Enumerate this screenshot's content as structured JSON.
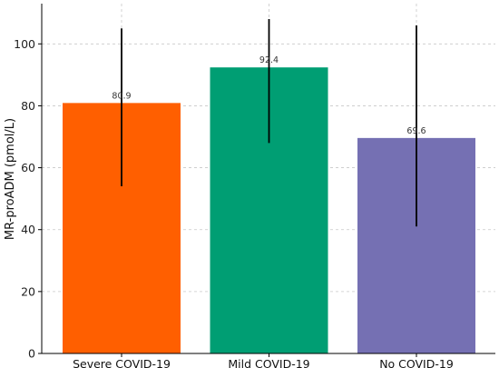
{
  "chart_data": {
    "type": "bar",
    "categories": [
      "Severe COVID-19",
      "Mild COVID-19",
      "No COVID-19"
    ],
    "values": [
      80.9,
      92.4,
      69.6
    ],
    "value_labels": [
      "80.9",
      "92.4",
      "69.6"
    ],
    "error_low": [
      54,
      68,
      41
    ],
    "error_high": [
      105,
      108,
      106
    ],
    "colors": [
      "#ff5f00",
      "#009e73",
      "#7570b3"
    ],
    "title": "",
    "xlabel": "",
    "ylabel": "MR-proADM (pmol/L)",
    "ylim": [
      0,
      113
    ],
    "yticks": [
      0,
      20,
      40,
      60,
      80,
      100
    ],
    "grid": true
  }
}
